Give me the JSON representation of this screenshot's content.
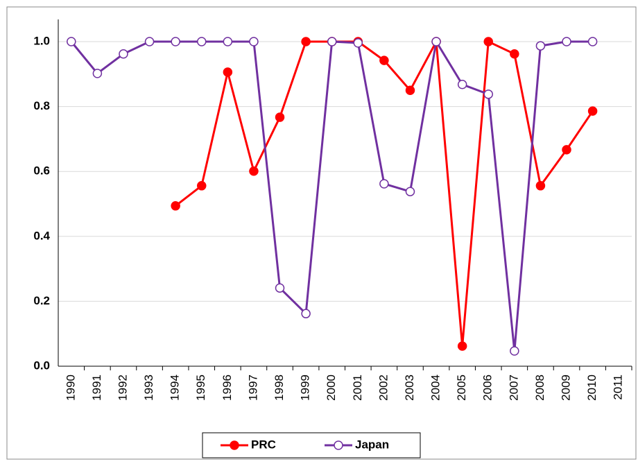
{
  "chart_data": {
    "type": "line",
    "categories": [
      "1990",
      "1991",
      "1992",
      "1993",
      "1994",
      "1995",
      "1996",
      "1997",
      "1998",
      "1999",
      "2000",
      "2001",
      "2002",
      "2003",
      "2004",
      "2005",
      "2006",
      "2007",
      "2008",
      "2009",
      "2010",
      "2011"
    ],
    "series": [
      {
        "name": "PRC",
        "color": "#ff0000",
        "marker": "filled",
        "values": [
          null,
          null,
          null,
          null,
          0.494,
          0.556,
          0.906,
          0.601,
          0.767,
          1.0,
          1.0,
          1.0,
          0.942,
          0.85,
          1.0,
          0.062,
          1.0,
          0.962,
          0.556,
          0.667,
          0.786,
          null
        ]
      },
      {
        "name": "Japan",
        "color": "#7030a0",
        "marker": "hollow",
        "values": [
          1.0,
          0.902,
          0.962,
          1.0,
          1.0,
          1.0,
          1.0,
          1.0,
          0.241,
          0.162,
          1.0,
          0.996,
          0.562,
          0.538,
          1.0,
          0.868,
          0.838,
          0.047,
          0.987,
          1.0,
          1.0,
          null
        ]
      }
    ],
    "ylim": [
      0,
      1.0
    ],
    "yticks": [
      {
        "value": 0,
        "label": "0.0"
      },
      0.2,
      0.4,
      0.6,
      0.8,
      {
        "value": 1.0,
        "label": "1.0"
      }
    ],
    "grid": true,
    "legend": "bottom"
  }
}
